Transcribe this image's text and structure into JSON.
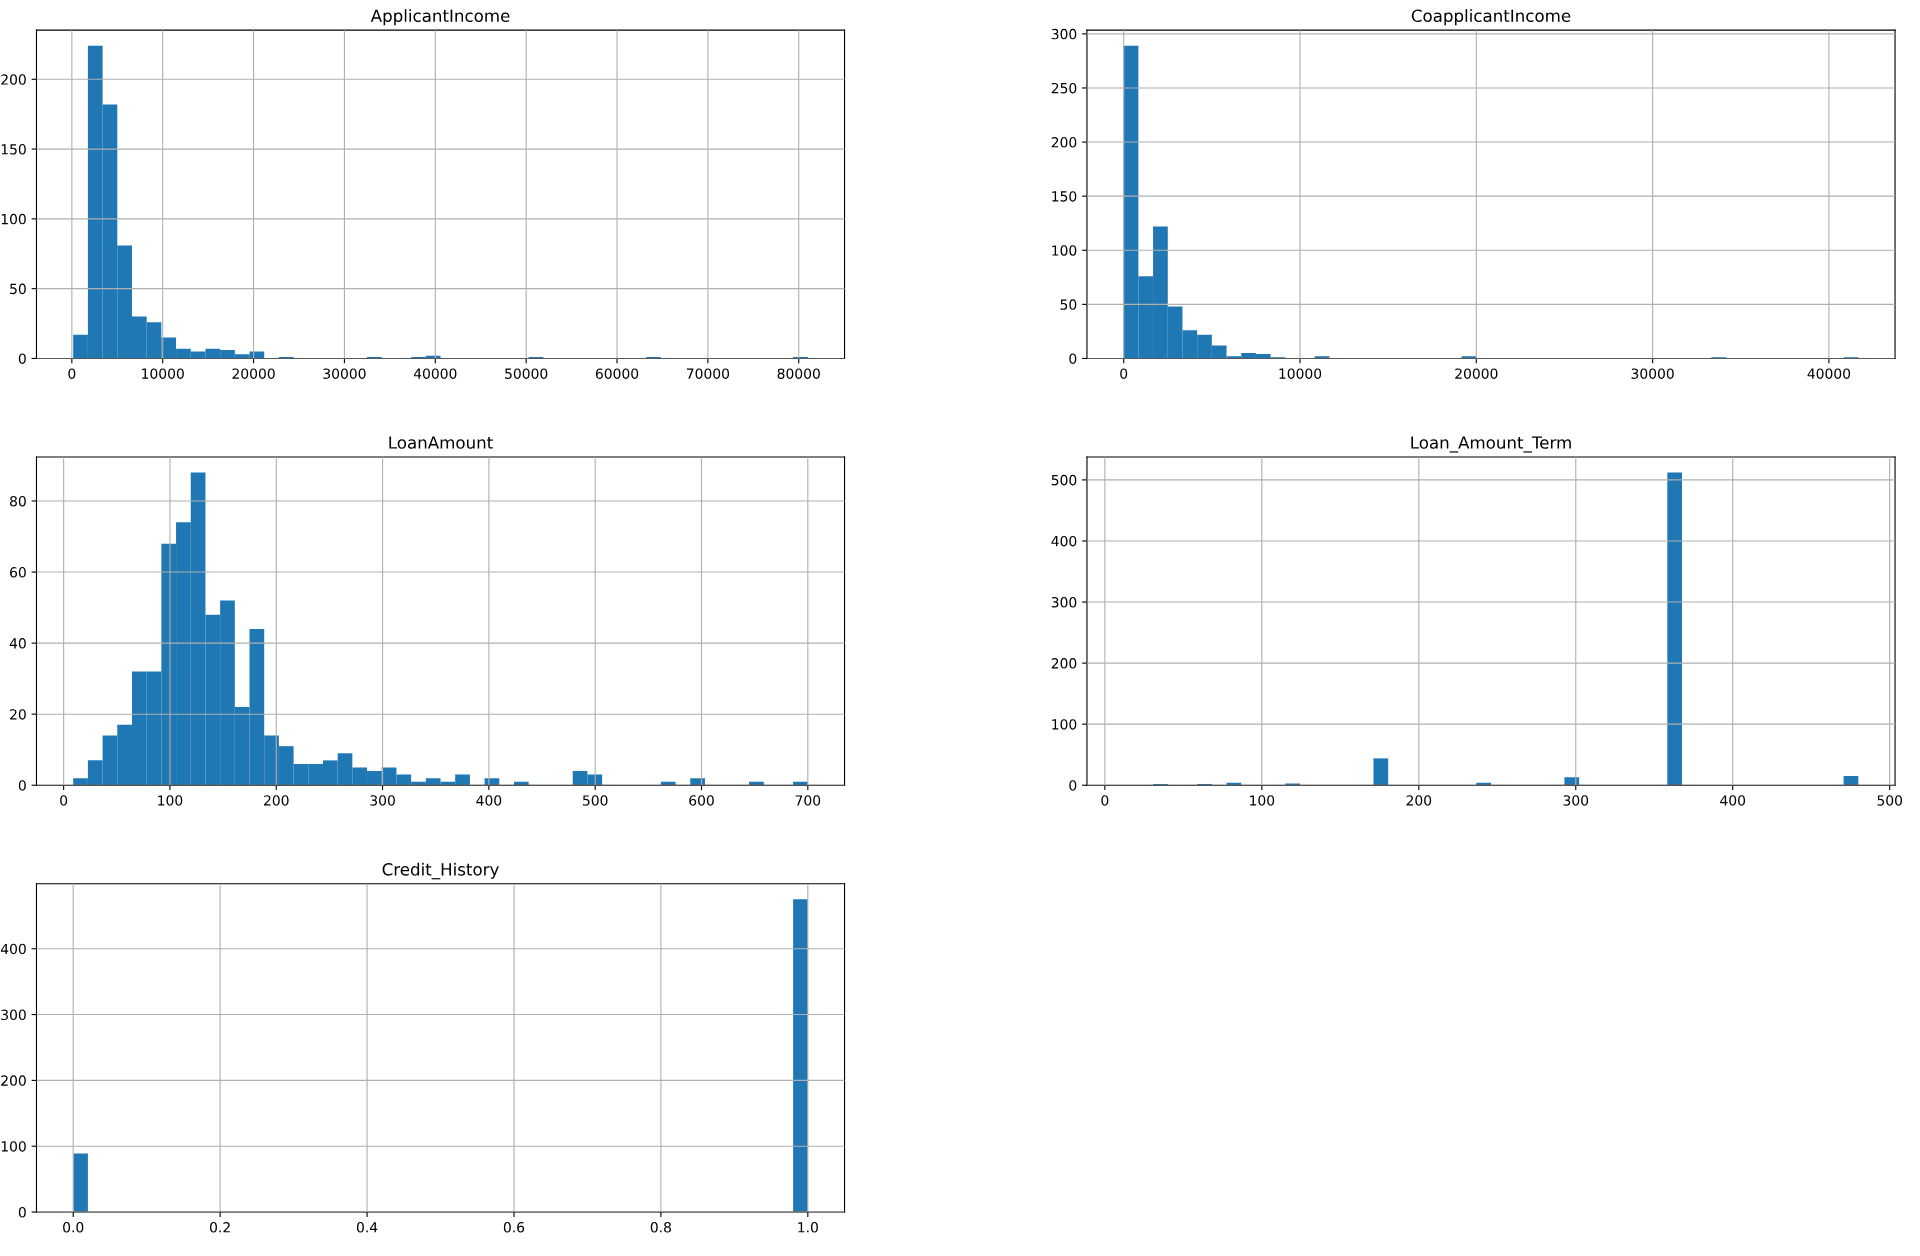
{
  "chart_data": [
    {
      "type": "histogram",
      "title": "ApplicantIncome",
      "color": "#1f77b4",
      "grid": true,
      "bins": [
        150,
        1767,
        3384,
        5001,
        6618,
        8235,
        9852,
        11469,
        13086,
        14703,
        16320,
        17937,
        19554,
        21171,
        22788,
        24405,
        26022,
        27639,
        29256,
        30873,
        32490,
        34107,
        35724,
        37341,
        38958,
        40575,
        42192,
        43809,
        45426,
        47043,
        48660,
        50277,
        51894,
        53511,
        55128,
        56745,
        58362,
        59979,
        61596,
        63213,
        64830,
        66447,
        68064,
        69681,
        71298,
        72915,
        74532,
        76149,
        77766,
        79383,
        81000
      ],
      "values": [
        17,
        224,
        182,
        81,
        30,
        26,
        15,
        7,
        5,
        7,
        6,
        3,
        5,
        0,
        1,
        0,
        0,
        0,
        0,
        0,
        1,
        0,
        0,
        1,
        2,
        0,
        0,
        0,
        0,
        0,
        0,
        1,
        0,
        0,
        0,
        0,
        0,
        0,
        0,
        1,
        0,
        0,
        0,
        0,
        0,
        0,
        0,
        0,
        0,
        1
      ],
      "xlim": [
        -3892.5,
        85042.5
      ],
      "xticks": [
        0,
        10000,
        20000,
        30000,
        40000,
        50000,
        60000,
        70000,
        80000
      ],
      "ylim": [
        0,
        235.2
      ],
      "yticks": [
        0,
        50,
        100,
        150,
        200
      ]
    },
    {
      "type": "histogram",
      "title": "CoapplicantIncome",
      "color": "#1f77b4",
      "grid": true,
      "bins": [
        0,
        833,
        1667,
        2500,
        3333,
        4167,
        5000,
        5833,
        6667,
        7500,
        8333,
        9167,
        10000,
        10833,
        11667,
        12500,
        13333,
        14167,
        15000,
        15833,
        16667,
        17500,
        18333,
        19167,
        20000,
        20833,
        21667,
        22500,
        23333,
        24167,
        25000,
        25833,
        26667,
        27500,
        28333,
        29167,
        30000,
        30833,
        31667,
        32500,
        33333,
        34167,
        35000,
        35833,
        36667,
        37500,
        38333,
        39167,
        40000,
        40833,
        41667
      ],
      "values": [
        289,
        76,
        122,
        48,
        26,
        22,
        12,
        2,
        5,
        4,
        1,
        0,
        0,
        2,
        0,
        0,
        0,
        0,
        0,
        0,
        0,
        0,
        0,
        2,
        0,
        0,
        0,
        0,
        0,
        0,
        0,
        0,
        0,
        0,
        0,
        0,
        0,
        0,
        0,
        0,
        1,
        0,
        0,
        0,
        0,
        0,
        0,
        0,
        0,
        1
      ],
      "xlim": [
        -2083,
        43750
      ],
      "xticks": [
        0,
        10000,
        20000,
        30000,
        40000
      ],
      "ylim": [
        0,
        303.45
      ],
      "yticks": [
        0,
        50,
        100,
        150,
        200,
        250,
        300
      ]
    },
    {
      "type": "histogram",
      "title": "LoanAmount",
      "color": "#1f77b4",
      "grid": true,
      "bins": [
        9,
        22.82,
        36.64,
        50.46,
        64.28,
        78.1,
        91.92,
        105.74,
        119.56,
        133.38,
        147.2,
        161.02,
        174.84,
        188.66,
        202.48,
        216.3,
        230.12,
        243.94,
        257.76,
        271.58,
        285.4,
        299.22,
        313.04,
        326.86,
        340.68,
        354.5,
        368.32,
        382.14,
        395.96,
        409.78,
        423.6,
        437.42,
        451.24,
        465.06,
        478.88,
        492.7,
        506.52,
        520.34,
        534.16,
        547.98,
        561.8,
        575.62,
        589.44,
        603.26,
        617.08,
        630.9,
        644.72,
        658.54,
        672.36,
        686.18,
        700
      ],
      "values": [
        2,
        7,
        14,
        17,
        32,
        32,
        68,
        74,
        88,
        48,
        52,
        22,
        44,
        14,
        11,
        6,
        6,
        7,
        9,
        5,
        4,
        5,
        3,
        1,
        2,
        1,
        3,
        0,
        2,
        0,
        1,
        0,
        0,
        0,
        4,
        3,
        0,
        0,
        0,
        0,
        1,
        0,
        2,
        0,
        0,
        0,
        1,
        0,
        0,
        1
      ],
      "xlim": [
        -25.55,
        734.55
      ],
      "xticks": [
        0,
        100,
        200,
        300,
        400,
        500,
        600,
        700
      ],
      "ylim": [
        0,
        92.4
      ],
      "yticks": [
        0,
        20,
        40,
        60,
        80
      ]
    },
    {
      "type": "histogram",
      "title": "Loan_Amount_Term",
      "color": "#1f77b4",
      "grid": true,
      "bins": [
        12,
        21.36,
        30.72,
        40.08,
        49.44,
        58.8,
        68.16,
        77.52,
        86.88,
        96.24,
        105.6,
        114.96,
        124.32,
        133.68,
        143.04,
        152.4,
        161.76,
        171.12,
        180.48,
        189.84,
        199.2,
        208.56,
        217.92,
        227.28,
        236.64,
        246,
        255.36,
        264.72,
        274.08,
        283.44,
        292.8,
        302.16,
        311.52,
        320.88,
        330.24,
        339.6,
        348.96,
        358.32,
        367.68,
        377.04,
        386.4,
        395.76,
        405.12,
        414.48,
        423.84,
        433.2,
        442.56,
        451.92,
        461.28,
        470.64,
        480
      ],
      "values": [
        null,
        0,
        2,
        0,
        0,
        2,
        0,
        4,
        0,
        0,
        0,
        3,
        0,
        0,
        0,
        0,
        0,
        44,
        0,
        0,
        0,
        0,
        0,
        0,
        4,
        0,
        0,
        0,
        0,
        0,
        13,
        0,
        0,
        0,
        0,
        0,
        0,
        512,
        0,
        0,
        0,
        0,
        0,
        0,
        0,
        0,
        0,
        0,
        0,
        15
      ],
      "xlim": [
        -11.4,
        503.4
      ],
      "xticks": [
        0,
        100,
        200,
        300,
        400,
        500
      ],
      "ylim": [
        0,
        537.6
      ],
      "yticks": [
        0,
        100,
        200,
        300,
        400,
        500
      ]
    },
    {
      "type": "histogram",
      "title": "Credit_History",
      "color": "#1f77b4",
      "grid": true,
      "bins": [
        0,
        0.02,
        0.04,
        0.06,
        0.08,
        0.1,
        0.12,
        0.14,
        0.16,
        0.18,
        0.2,
        0.22,
        0.24,
        0.26,
        0.28,
        0.3,
        0.32,
        0.34,
        0.36,
        0.38,
        0.4,
        0.42,
        0.44,
        0.46,
        0.48,
        0.5,
        0.52,
        0.54,
        0.56,
        0.58,
        0.6,
        0.62,
        0.64,
        0.66,
        0.68,
        0.7,
        0.72,
        0.74,
        0.76,
        0.78,
        0.8,
        0.82,
        0.84,
        0.86,
        0.88,
        0.9,
        0.92,
        0.94,
        0.96,
        0.98,
        1.0
      ],
      "values": [
        89,
        0,
        0,
        0,
        0,
        0,
        0,
        0,
        0,
        0,
        0,
        0,
        0,
        0,
        0,
        0,
        0,
        0,
        0,
        0,
        0,
        0,
        0,
        0,
        0,
        0,
        0,
        0,
        0,
        0,
        0,
        0,
        0,
        0,
        0,
        0,
        0,
        0,
        0,
        0,
        0,
        0,
        0,
        0,
        0,
        0,
        0,
        0,
        0,
        475
      ],
      "xlim": [
        -0.05,
        1.05
      ],
      "xticks": [
        {
          "value": 0,
          "label": "0.0"
        },
        {
          "value": 0.2,
          "label": "0.2"
        },
        {
          "value": 0.4,
          "label": "0.4"
        },
        {
          "value": 0.6,
          "label": "0.6"
        },
        {
          "value": 0.8,
          "label": "0.8"
        },
        {
          "value": 1.0,
          "label": "1.0"
        }
      ],
      "ylim": [
        0,
        498.75
      ],
      "yticks": [
        0,
        100,
        200,
        300,
        400
      ]
    }
  ]
}
